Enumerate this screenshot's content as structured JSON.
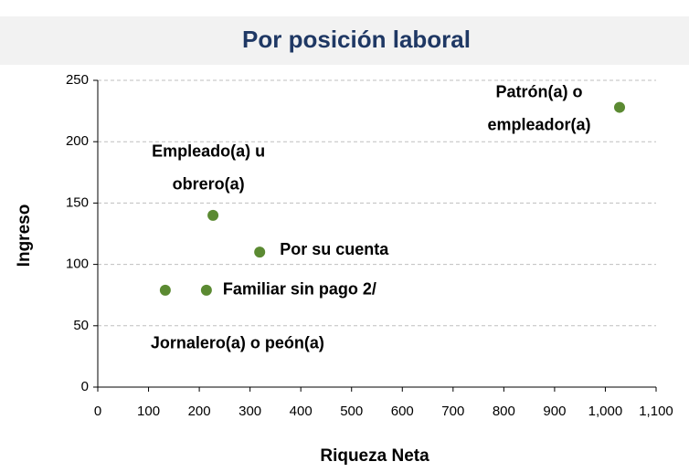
{
  "chart_data": {
    "type": "scatter",
    "title": "Por posición laboral",
    "x_label": "Riqueza Neta",
    "y_label": "Ingreso",
    "series": [
      {
        "name": null,
        "color": "#5b8a32",
        "x": [
          133,
          214,
          227,
          319,
          1028
        ],
        "values": [
          79,
          79,
          140,
          110,
          228
        ]
      }
    ],
    "point_labels": [
      [
        "Jornalero(a) o peón(a)"
      ],
      [
        "Familiar sin pago 2/"
      ],
      [
        "Empleado(a) u",
        "obrero(a)"
      ],
      [
        "Por su cuenta"
      ],
      [
        "Patrón(a) o",
        "empleador(a)"
      ]
    ],
    "xlim": [
      0,
      1100
    ],
    "ylim": [
      0,
      250
    ],
    "xticks": [
      0,
      100,
      200,
      300,
      400,
      500,
      600,
      700,
      800,
      900,
      {
        "value": 1000,
        "label": "1,000"
      },
      {
        "value": 1100,
        "label": "1,100"
      }
    ],
    "yticks": [
      0,
      50,
      100,
      150,
      200,
      250
    ],
    "grid": true
  }
}
